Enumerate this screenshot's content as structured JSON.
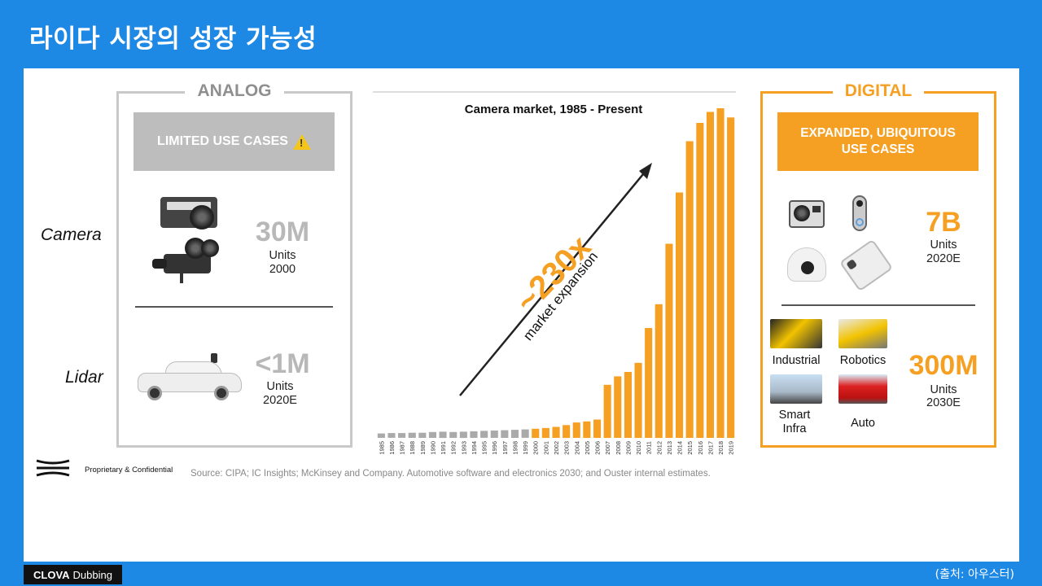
{
  "slide_title": "라이다 시장의 성장 가능성",
  "analog": {
    "title": "ANALOG",
    "header": "LIMITED USE CASES",
    "header_icon": "warning-icon",
    "camera": {
      "label": "Camera",
      "value": "30M",
      "units": "Units",
      "year": "2000"
    },
    "lidar": {
      "label": "Lidar",
      "value": "<1M",
      "units": "Units",
      "year": "2020E"
    }
  },
  "chart_data": {
    "type": "bar",
    "title": "Camera market, 1985 - Present",
    "categories": [
      "1985",
      "1986",
      "1987",
      "1988",
      "1989",
      "1990",
      "1991",
      "1992",
      "1993",
      "1994",
      "1995",
      "1996",
      "1997",
      "1998",
      "1999",
      "2000",
      "2001",
      "2002",
      "2003",
      "2004",
      "2005",
      "2006",
      "2007",
      "2008",
      "2009",
      "2010",
      "2011",
      "2012",
      "2013",
      "2014",
      "2015",
      "2016",
      "2017",
      "2018",
      "2019"
    ],
    "values": [
      1.2,
      1.3,
      1.3,
      1.4,
      1.4,
      1.6,
      1.7,
      1.6,
      1.7,
      1.8,
      1.9,
      2.0,
      2.1,
      2.2,
      2.3,
      2.5,
      2.7,
      3.0,
      3.5,
      4.2,
      4.5,
      5.0,
      14.5,
      16.8,
      18.0,
      20.5,
      30.0,
      36.5,
      53.0,
      67.0,
      81.0,
      86.0,
      89.0,
      90.0,
      87.5
    ],
    "series_colors": {
      "early": "#aaaaaa",
      "digital": "#f5a023"
    },
    "annotation_value": "~230x",
    "annotation_text": "market expansion"
  },
  "digital": {
    "title": "DIGITAL",
    "header_line1": "EXPANDED, UBIQUITOUS",
    "header_line2": "USE CASES",
    "camera": {
      "value": "7B",
      "units": "Units",
      "year": "2020E"
    },
    "lidar": {
      "value": "300M",
      "units": "Units",
      "year": "2030E",
      "apps": [
        "Industrial",
        "Robotics",
        "Smart Infra",
        "Auto"
      ]
    }
  },
  "footer": {
    "proprietary": "Proprietary & Confidential",
    "source": "Source: CIPA; IC Insights; McKinsey and Company. Automotive software and electronics 2030; and Ouster internal estimates."
  },
  "watermark": {
    "brand_bold": "CLOVA",
    "brand": "Dubbing",
    "credit": "(출처: 아우스터)"
  },
  "colors": {
    "background": "#1e88e5",
    "accent": "#f5a023",
    "gray": "#bdbdbd"
  }
}
